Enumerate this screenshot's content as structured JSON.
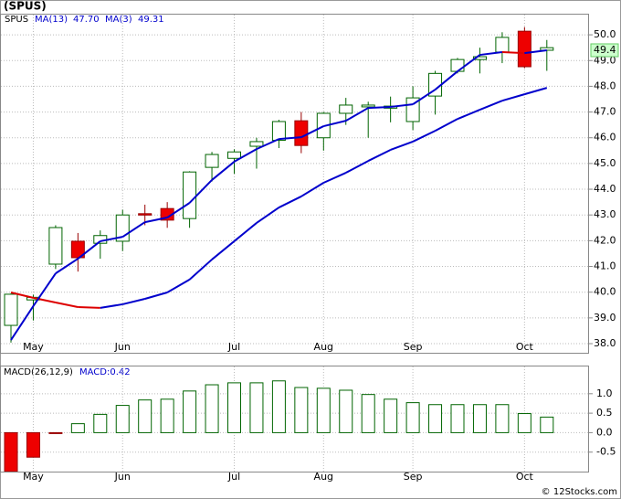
{
  "chart_data": {
    "type": "candlestick",
    "title": "(SPUS)",
    "symbol": "SPUS",
    "categories": [
      null,
      "May",
      null,
      null,
      null,
      "Jun",
      null,
      null,
      null,
      null,
      "Jul",
      null,
      null,
      null,
      "Aug",
      null,
      null,
      null,
      "Sep",
      null,
      null,
      null,
      null,
      "Oct",
      null
    ],
    "open": [
      38.71,
      39.7,
      41.09,
      41.98,
      41.9,
      41.98,
      43.05,
      43.25,
      42.86,
      44.85,
      45.2,
      45.67,
      45.9,
      46.66,
      46.0,
      46.95,
      47.2,
      47.15,
      46.63,
      47.62,
      48.58,
      49.04,
      49.33,
      50.14,
      49.4
    ],
    "high": [
      39.95,
      39.9,
      42.6,
      42.3,
      42.4,
      43.2,
      43.4,
      43.5,
      44.7,
      45.45,
      45.55,
      46.0,
      46.7,
      47.0,
      47.0,
      47.55,
      47.4,
      47.6,
      48.0,
      48.6,
      49.1,
      49.5,
      50.1,
      50.3,
      49.8
    ],
    "low": [
      38.04,
      38.9,
      40.9,
      40.8,
      41.3,
      41.6,
      42.6,
      42.5,
      42.5,
      44.3,
      44.6,
      44.8,
      45.6,
      45.4,
      45.5,
      46.5,
      46.0,
      46.6,
      46.3,
      46.9,
      48.5,
      48.5,
      48.9,
      48.7,
      48.6
    ],
    "close": [
      39.92,
      39.8,
      42.51,
      41.34,
      42.2,
      43.0,
      43.0,
      42.8,
      44.67,
      45.35,
      45.45,
      45.85,
      46.63,
      45.7,
      46.95,
      47.27,
      47.27,
      47.23,
      47.55,
      48.5,
      49.04,
      49.15,
      49.9,
      48.76,
      49.5
    ],
    "up_color": "#ffffff",
    "up_edge": "#006400",
    "down_color": "#ee0000",
    "down_edge": "#990000",
    "series": [
      {
        "name": "MA(13)",
        "label": "47.70",
        "up_color": "#0000cc",
        "down_color": "#dd0000",
        "values": [
          39.99,
          39.78,
          39.6,
          39.42,
          39.39,
          39.53,
          39.74,
          39.99,
          40.49,
          41.27,
          41.98,
          42.69,
          43.29,
          43.72,
          44.25,
          44.64,
          45.1,
          45.53,
          45.85,
          46.27,
          46.73,
          47.09,
          47.44,
          47.69,
          47.94
        ]
      },
      {
        "name": "MA(3)",
        "label": "49.31",
        "up_color": "#0000cc",
        "down_color": "#dd0000",
        "values": [
          38.14,
          39.46,
          40.73,
          41.3,
          41.98,
          42.15,
          42.72,
          42.9,
          43.47,
          44.36,
          45.07,
          45.56,
          45.95,
          46.02,
          46.45,
          46.66,
          47.16,
          47.2,
          47.3,
          47.87,
          48.58,
          49.22,
          49.33,
          49.29,
          49.4
        ]
      }
    ],
    "last_price": 49.4,
    "ylim": [
      37.61,
      50.82
    ],
    "yticks": [
      {
        "value": 38,
        "label": "38.0"
      },
      {
        "value": 39,
        "label": "39.0"
      },
      {
        "value": 40,
        "label": "40.0"
      },
      {
        "value": 41,
        "label": "41.0"
      },
      {
        "value": 42,
        "label": "42.0"
      },
      {
        "value": 43,
        "label": "43.0"
      },
      {
        "value": 44,
        "label": "44.0"
      },
      {
        "value": 45,
        "label": "45.0"
      },
      {
        "value": 46,
        "label": "46.0"
      },
      {
        "value": 47,
        "label": "47.0"
      },
      {
        "value": 48,
        "label": "48.0"
      },
      {
        "value": 49,
        "label": "49.0"
      },
      {
        "value": 50,
        "label": "50.0"
      }
    ],
    "grid": true,
    "macd": {
      "name": "MACD(26,12,9)",
      "label": "MACD:0.42",
      "values": [
        -1.0,
        -0.63,
        -0.02,
        0.23,
        0.47,
        0.7,
        0.84,
        0.86,
        1.07,
        1.23,
        1.28,
        1.28,
        1.33,
        1.16,
        1.14,
        1.09,
        0.98,
        0.86,
        0.77,
        0.72,
        0.72,
        0.72,
        0.72,
        0.49,
        0.4
      ],
      "ylim": [
        -1.0,
        1.7
      ],
      "yticks": [
        -0.5,
        {
          "value": 0,
          "label": "0.0"
        },
        0.5,
        {
          "value": 1,
          "label": "1.0"
        }
      ]
    },
    "credit": "© 12Stocks.com"
  }
}
